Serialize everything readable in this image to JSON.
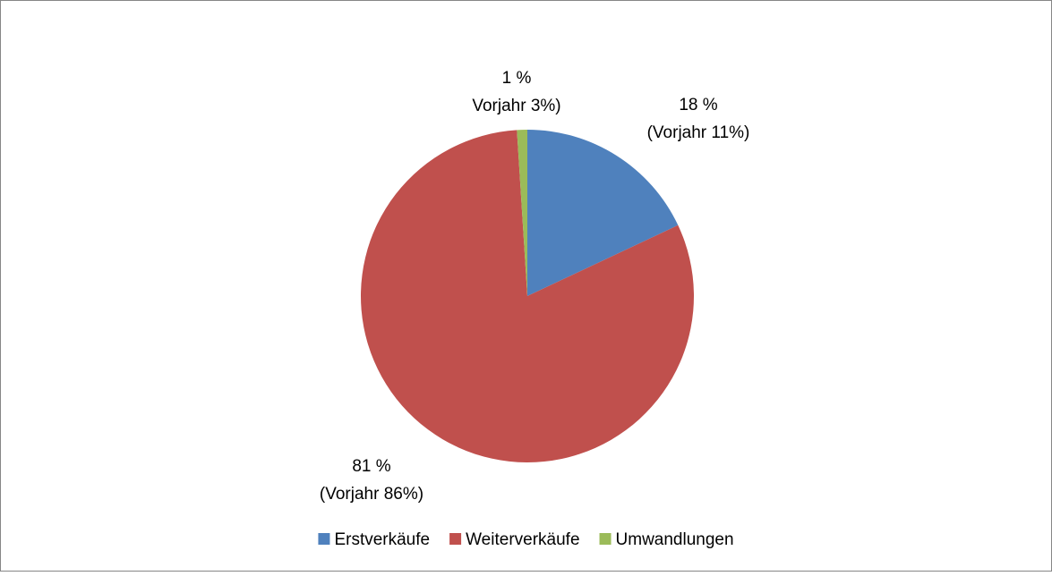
{
  "chart_data": {
    "type": "pie",
    "categories": [
      "Erstverkäufe",
      "Weiterverkäufe",
      "Umwandlungen"
    ],
    "values": [
      18,
      81,
      1
    ],
    "value_labels": [
      "18 %",
      "81 %",
      "1 %"
    ],
    "previous_year_labels": [
      "(Vorjahr 11%)",
      "(Vorjahr 86%)",
      "Vorjahr 3%)"
    ],
    "colors": [
      "#4f81bd",
      "#c0504d",
      "#9bbb59"
    ],
    "legend": "bottom"
  }
}
